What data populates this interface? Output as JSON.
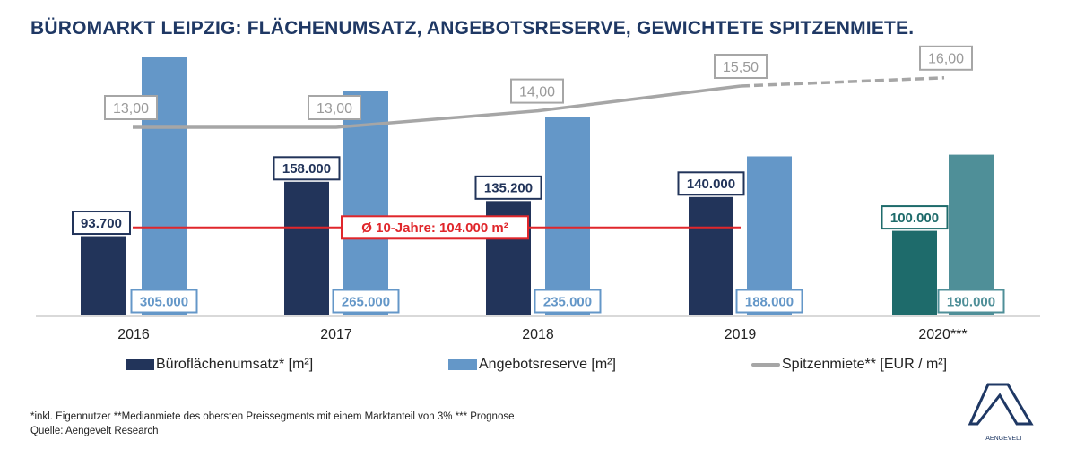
{
  "title": "BÜROMARKT LEIPZIG: FLÄCHENUMSATZ, ANGEBOTSRESERVE, GEWICHTETE SPITZENMIETE.",
  "chart_data": {
    "type": "bar",
    "categories": [
      "2016",
      "2017",
      "2018",
      "2019",
      "2020***"
    ],
    "series": [
      {
        "name": "Büroflächenumsatz* [m²]",
        "type": "bar",
        "values": [
          93700,
          158000,
          135200,
          140000,
          100000
        ],
        "labels": [
          "93.700",
          "158.000",
          "135.200",
          "140.000",
          "100.000"
        ],
        "color": "#22345a",
        "forecast_color": "#1e6b6b"
      },
      {
        "name": "Angebotsreserve [m²]",
        "type": "bar",
        "values": [
          305000,
          265000,
          235000,
          188000,
          190000
        ],
        "labels": [
          "305.000",
          "265.000",
          "235.000",
          "188.000",
          "190.000"
        ],
        "color": "#6497c8",
        "forecast_color": "#4f8f98"
      },
      {
        "name": "Spitzenmiete** [EUR / m²]",
        "type": "line",
        "axis": "secondary",
        "values": [
          13.0,
          13.0,
          14.0,
          15.5,
          16.0
        ],
        "labels": [
          "13,00",
          "13,00",
          "14,00",
          "15,50",
          "16,00"
        ],
        "color": "#a6a6a6",
        "forecast_dashed": true
      }
    ],
    "reference_line": {
      "value": 104000,
      "label": "Ø 10-Jahre: 104.000 m²",
      "color": "#e0262b"
    },
    "ylim": [
      0,
      305000
    ],
    "grid": false,
    "legend": "bottom"
  },
  "footnote": "*inkl. Eigennutzer **Medianmiete des obersten Preissegments mit einem Marktanteil von 3% *** Prognose",
  "source": "Quelle: Aengevelt Research",
  "logo_text": "AENGEVELT"
}
